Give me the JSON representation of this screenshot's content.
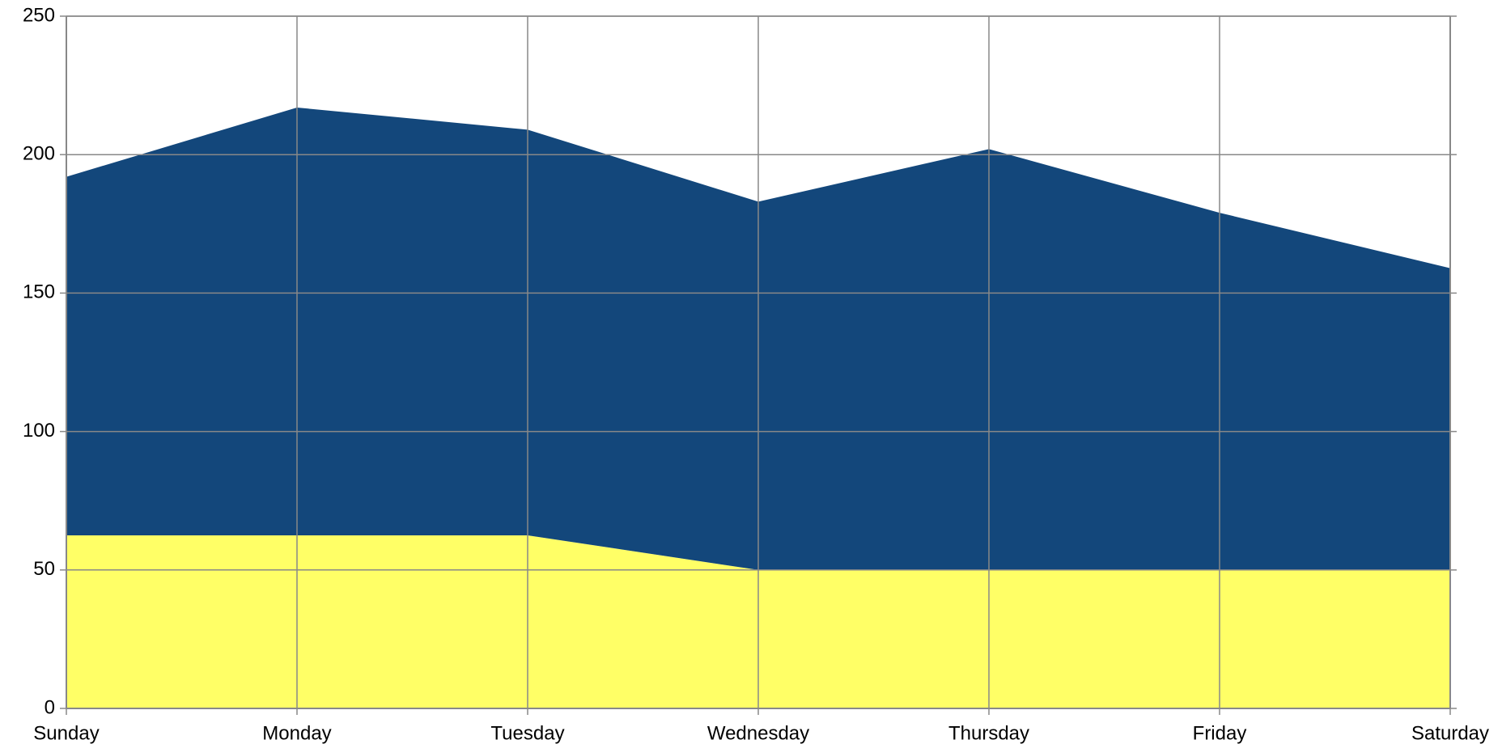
{
  "chart_data": {
    "type": "stacked_area",
    "categories": [
      "Sunday",
      "Monday",
      "Tuesday",
      "Wednesday",
      "Thursday",
      "Friday",
      "Saturday"
    ],
    "series": [
      {
        "color": "#ffff66",
        "values": [
          62.5,
          62.5,
          62.5,
          50,
          50,
          50,
          50
        ]
      },
      {
        "color": "#13477b",
        "values": [
          129.5,
          154.5,
          146.5,
          133,
          152,
          129,
          109
        ]
      }
    ],
    "ylim": [
      0,
      250
    ],
    "yticks": [
      0,
      50,
      100,
      150,
      200,
      250
    ],
    "grid": true
  }
}
